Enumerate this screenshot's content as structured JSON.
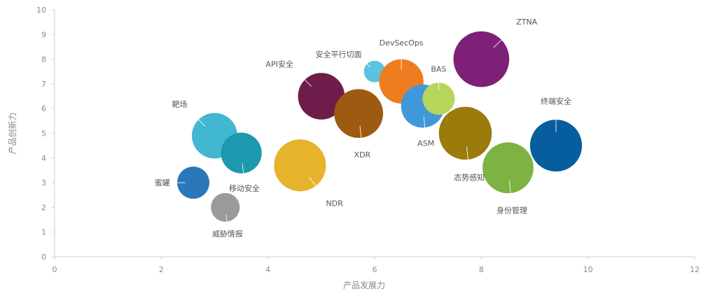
{
  "chart_data": {
    "type": "bubble",
    "xlabel": "产品发展力",
    "ylabel": "产品创新力",
    "xlim": [
      0,
      12
    ],
    "ylim": [
      0,
      10
    ],
    "xticks": [
      0,
      2,
      4,
      6,
      8,
      10,
      12
    ],
    "yticks": [
      0,
      1,
      2,
      3,
      4,
      5,
      6,
      7,
      8,
      9,
      10
    ],
    "grid": false,
    "points": [
      {
        "label": "蜜罐",
        "x": 2.6,
        "y": 3.0,
        "size": 1.0,
        "color": "#2A78BA",
        "label_pos": "left"
      },
      {
        "label": "威胁情报",
        "x": 3.2,
        "y": 2.0,
        "size": 0.8,
        "color": "#9A9A9A",
        "label_pos": "below"
      },
      {
        "label": "靶场",
        "x": 3.0,
        "y": 4.9,
        "size": 2.0,
        "color": "#42B7D1",
        "label_pos": "upper-left"
      },
      {
        "label": "移动安全",
        "x": 3.5,
        "y": 4.2,
        "size": 1.6,
        "color": "#1C98AF",
        "label_pos": "below"
      },
      {
        "label": "NDR",
        "x": 4.6,
        "y": 3.7,
        "size": 2.6,
        "color": "#E6B42C",
        "label_pos": "lower-right"
      },
      {
        "label": "API安全",
        "x": 5.0,
        "y": 6.5,
        "size": 2.1,
        "color": "#6E1D4A",
        "label_pos": "upper-left"
      },
      {
        "label": "XDR",
        "x": 5.7,
        "y": 5.8,
        "size": 2.3,
        "color": "#9E5A10",
        "label_pos": "below"
      },
      {
        "label": "安全平行切面",
        "x": 6.0,
        "y": 7.5,
        "size": 0.45,
        "color": "#5BC3DD",
        "label_pos": "upper-left"
      },
      {
        "label": "DevSecOps",
        "x": 6.5,
        "y": 7.1,
        "size": 1.9,
        "color": "#EE7D1F",
        "label_pos": "above"
      },
      {
        "label": "ASM",
        "x": 6.9,
        "y": 6.1,
        "size": 1.8,
        "color": "#3F98DA",
        "label_pos": "below"
      },
      {
        "label": "BAS",
        "x": 7.2,
        "y": 6.4,
        "size": 1.0,
        "color": "#B7D55A",
        "label_pos": "above"
      },
      {
        "label": "态势感知",
        "x": 7.7,
        "y": 5.0,
        "size": 2.7,
        "color": "#9B7B0C",
        "label_pos": "below"
      },
      {
        "label": "ZTNA",
        "x": 8.0,
        "y": 8.0,
        "size": 3.0,
        "color": "#7E1F78",
        "label_pos": "upper-right"
      },
      {
        "label": "身份管理",
        "x": 8.5,
        "y": 3.6,
        "size": 2.5,
        "color": "#7EB243",
        "label_pos": "below"
      },
      {
        "label": "终端安全",
        "x": 9.4,
        "y": 4.5,
        "size": 2.6,
        "color": "#075E9E",
        "label_pos": "above"
      }
    ]
  }
}
